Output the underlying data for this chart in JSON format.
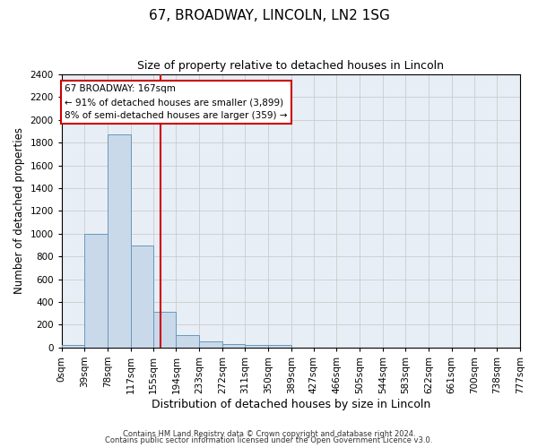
{
  "title1": "67, BROADWAY, LINCOLN, LN2 1SG",
  "title2": "Size of property relative to detached houses in Lincoln",
  "xlabel": "Distribution of detached houses by size in Lincoln",
  "ylabel": "Number of detached properties",
  "bin_edges": [
    0,
    39,
    78,
    117,
    155,
    194,
    233,
    272,
    311,
    350,
    389,
    427,
    466,
    505,
    544,
    583,
    622,
    661,
    700,
    738,
    777
  ],
  "bar_heights": [
    20,
    1000,
    1870,
    900,
    310,
    105,
    50,
    30,
    20,
    20,
    0,
    0,
    0,
    0,
    0,
    0,
    0,
    0,
    0,
    0
  ],
  "bar_color": "#c9d9ea",
  "bar_edge_color": "#6699bb",
  "property_size": 167,
  "vline_color": "#cc0000",
  "ylim": [
    0,
    2400
  ],
  "annotation_text": "67 BROADWAY: 167sqm\n← 91% of detached houses are smaller (3,899)\n8% of semi-detached houses are larger (359) →",
  "annotation_box_facecolor": "#ffffff",
  "annotation_box_edgecolor": "#cc0000",
  "footer1": "Contains HM Land Registry data © Crown copyright and database right 2024.",
  "footer2": "Contains public sector information licensed under the Open Government Licence v3.0.",
  "plot_bg_color": "#e8eef5",
  "grid_color": "#cccccc",
  "title1_fontsize": 11,
  "title2_fontsize": 9,
  "xlabel_fontsize": 9,
  "ylabel_fontsize": 8.5,
  "tick_fontsize": 7.5,
  "footer_fontsize": 6
}
